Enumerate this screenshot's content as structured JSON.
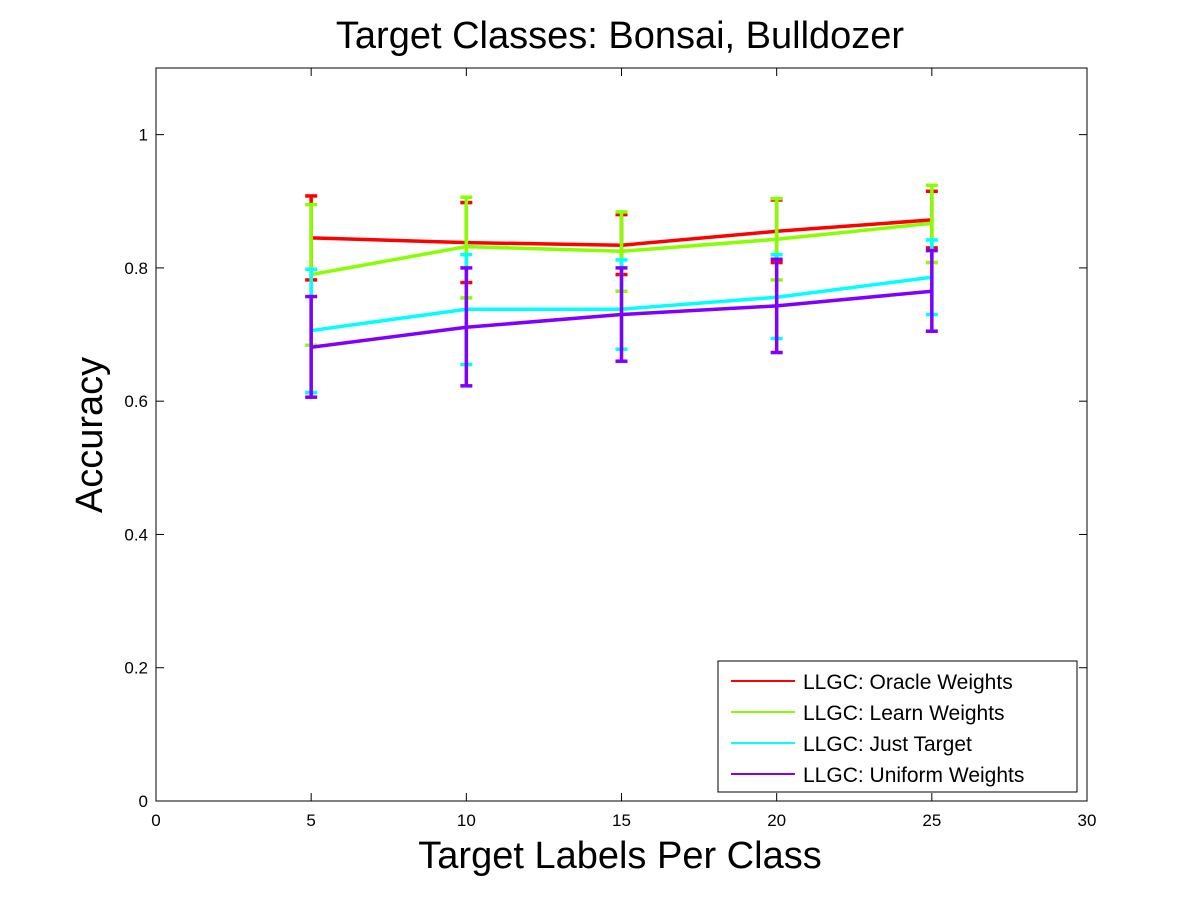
{
  "chart_data": {
    "type": "line",
    "title": "Target Classes: Bonsai, Bulldozer",
    "xlabel": "Target Labels Per Class",
    "ylabel": "Accuracy",
    "xlim": [
      0,
      30
    ],
    "ylim": [
      0,
      1.1
    ],
    "xticks": [
      0,
      5,
      10,
      15,
      20,
      25,
      30
    ],
    "xtick_labels": [
      "0",
      "5",
      "10",
      "15",
      "20",
      "25",
      "30"
    ],
    "yticks": [
      0,
      0.2,
      0.4,
      0.6,
      0.8,
      1
    ],
    "ytick_labels": [
      "0",
      "0.2",
      "0.4",
      "0.6",
      "0.8",
      "1"
    ],
    "grid": false,
    "legend_position": "bottom-right",
    "x": [
      5,
      10,
      15,
      20,
      25
    ],
    "series": [
      {
        "name": "LLGC: Oracle Weights",
        "color": "#ff0000",
        "values": [
          0.845,
          0.838,
          0.834,
          0.855,
          0.872
        ],
        "err_low": [
          0.782,
          0.778,
          0.79,
          0.808,
          0.83
        ],
        "err_high": [
          0.908,
          0.898,
          0.88,
          0.902,
          0.915
        ]
      },
      {
        "name": "LLGC: Learn Weights",
        "color": "#88ff00",
        "values": [
          0.79,
          0.832,
          0.825,
          0.843,
          0.867
        ],
        "err_low": [
          0.684,
          0.755,
          0.765,
          0.782,
          0.808
        ],
        "err_high": [
          0.895,
          0.906,
          0.884,
          0.904,
          0.924
        ]
      },
      {
        "name": "LLGC: Just Target",
        "color": "#00ffff",
        "values": [
          0.706,
          0.738,
          0.738,
          0.756,
          0.786
        ],
        "err_low": [
          0.613,
          0.655,
          0.678,
          0.694,
          0.73
        ],
        "err_high": [
          0.798,
          0.82,
          0.812,
          0.82,
          0.842
        ]
      },
      {
        "name": "LLGC: Uniform Weights",
        "color": "#8000ff",
        "values": [
          0.681,
          0.711,
          0.73,
          0.743,
          0.765
        ],
        "err_low": [
          0.606,
          0.623,
          0.66,
          0.673,
          0.705
        ],
        "err_high": [
          0.757,
          0.8,
          0.8,
          0.813,
          0.826
        ]
      }
    ]
  }
}
